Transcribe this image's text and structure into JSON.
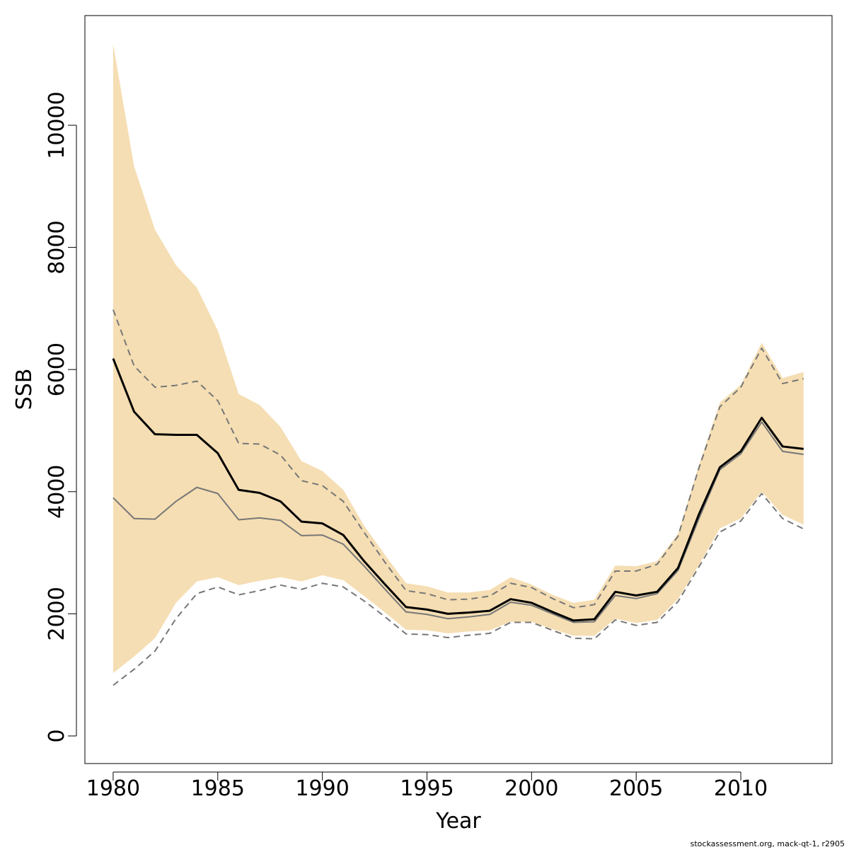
{
  "chart_data": {
    "type": "line",
    "xlabel": "Year",
    "ylabel": "SSB",
    "footnote": "stockassessment.org, mack-qt-1, r2905",
    "x": [
      1980,
      1981,
      1982,
      1983,
      1984,
      1985,
      1986,
      1987,
      1988,
      1989,
      1990,
      1991,
      1992,
      1993,
      1994,
      1995,
      1996,
      1997,
      1998,
      1999,
      2000,
      2001,
      2002,
      2003,
      2004,
      2005,
      2006,
      2007,
      2008,
      2009,
      2010,
      2011,
      2012,
      2013
    ],
    "xlim": [
      1978.65,
      2014.36
    ],
    "xticks": [
      1980,
      1985,
      1990,
      1995,
      2000,
      2005,
      2010
    ],
    "ylim": [
      -452,
      11796
    ],
    "yticks": [
      0,
      2000,
      4000,
      6000,
      8000,
      10000
    ],
    "band": {
      "color": "#f5deb3",
      "upper": [
        11330,
        9330,
        8290,
        7710,
        7340,
        6640,
        5600,
        5420,
        5060,
        4500,
        4340,
        4030,
        3440,
        2960,
        2500,
        2450,
        2350,
        2350,
        2390,
        2600,
        2480,
        2310,
        2180,
        2230,
        2790,
        2780,
        2860,
        3310,
        4440,
        5460,
        5750,
        6440,
        5860,
        5960
      ],
      "lower": [
        1030,
        1300,
        1600,
        2180,
        2530,
        2600,
        2470,
        2540,
        2600,
        2530,
        2630,
        2550,
        2290,
        2020,
        1740,
        1730,
        1680,
        1710,
        1730,
        1870,
        1870,
        1750,
        1640,
        1640,
        1920,
        1850,
        1900,
        2240,
        2800,
        3400,
        3560,
        4000,
        3620,
        3460
      ]
    },
    "series": [
      {
        "color": "#777777",
        "dashed": true,
        "width": 2,
        "values": [
          6980,
          6060,
          5710,
          5740,
          5810,
          5490,
          4790,
          4780,
          4600,
          4180,
          4100,
          3840,
          3330,
          2840,
          2380,
          2330,
          2230,
          2240,
          2290,
          2500,
          2430,
          2250,
          2100,
          2150,
          2700,
          2700,
          2810,
          3270,
          4390,
          5390,
          5710,
          6350,
          5770,
          5850
        ]
      },
      {
        "color": "#777777",
        "dashed": true,
        "width": 2,
        "values": [
          830,
          1090,
          1390,
          1920,
          2330,
          2440,
          2310,
          2380,
          2470,
          2400,
          2500,
          2440,
          2210,
          1950,
          1670,
          1660,
          1610,
          1650,
          1680,
          1860,
          1860,
          1730,
          1600,
          1590,
          1900,
          1810,
          1860,
          2200,
          2770,
          3340,
          3520,
          3970,
          3560,
          3390
        ]
      },
      {
        "color": "#777777",
        "dashed": false,
        "width": 2,
        "values": [
          3900,
          3560,
          3550,
          3840,
          4070,
          3970,
          3540,
          3570,
          3530,
          3280,
          3290,
          3140,
          2780,
          2400,
          2030,
          1990,
          1920,
          1950,
          1990,
          2190,
          2140,
          2000,
          1860,
          1870,
          2300,
          2250,
          2330,
          2710,
          3560,
          4360,
          4620,
          5140,
          4660,
          4610
        ]
      },
      {
        "color": "#000000",
        "dashed": false,
        "width": 3,
        "values": [
          6180,
          5310,
          4940,
          4930,
          4930,
          4630,
          4030,
          3980,
          3840,
          3510,
          3480,
          3290,
          2860,
          2480,
          2110,
          2070,
          2000,
          2020,
          2050,
          2240,
          2180,
          2030,
          1890,
          1910,
          2360,
          2300,
          2360,
          2750,
          3630,
          4400,
          4660,
          5210,
          4740,
          4700
        ]
      }
    ]
  }
}
